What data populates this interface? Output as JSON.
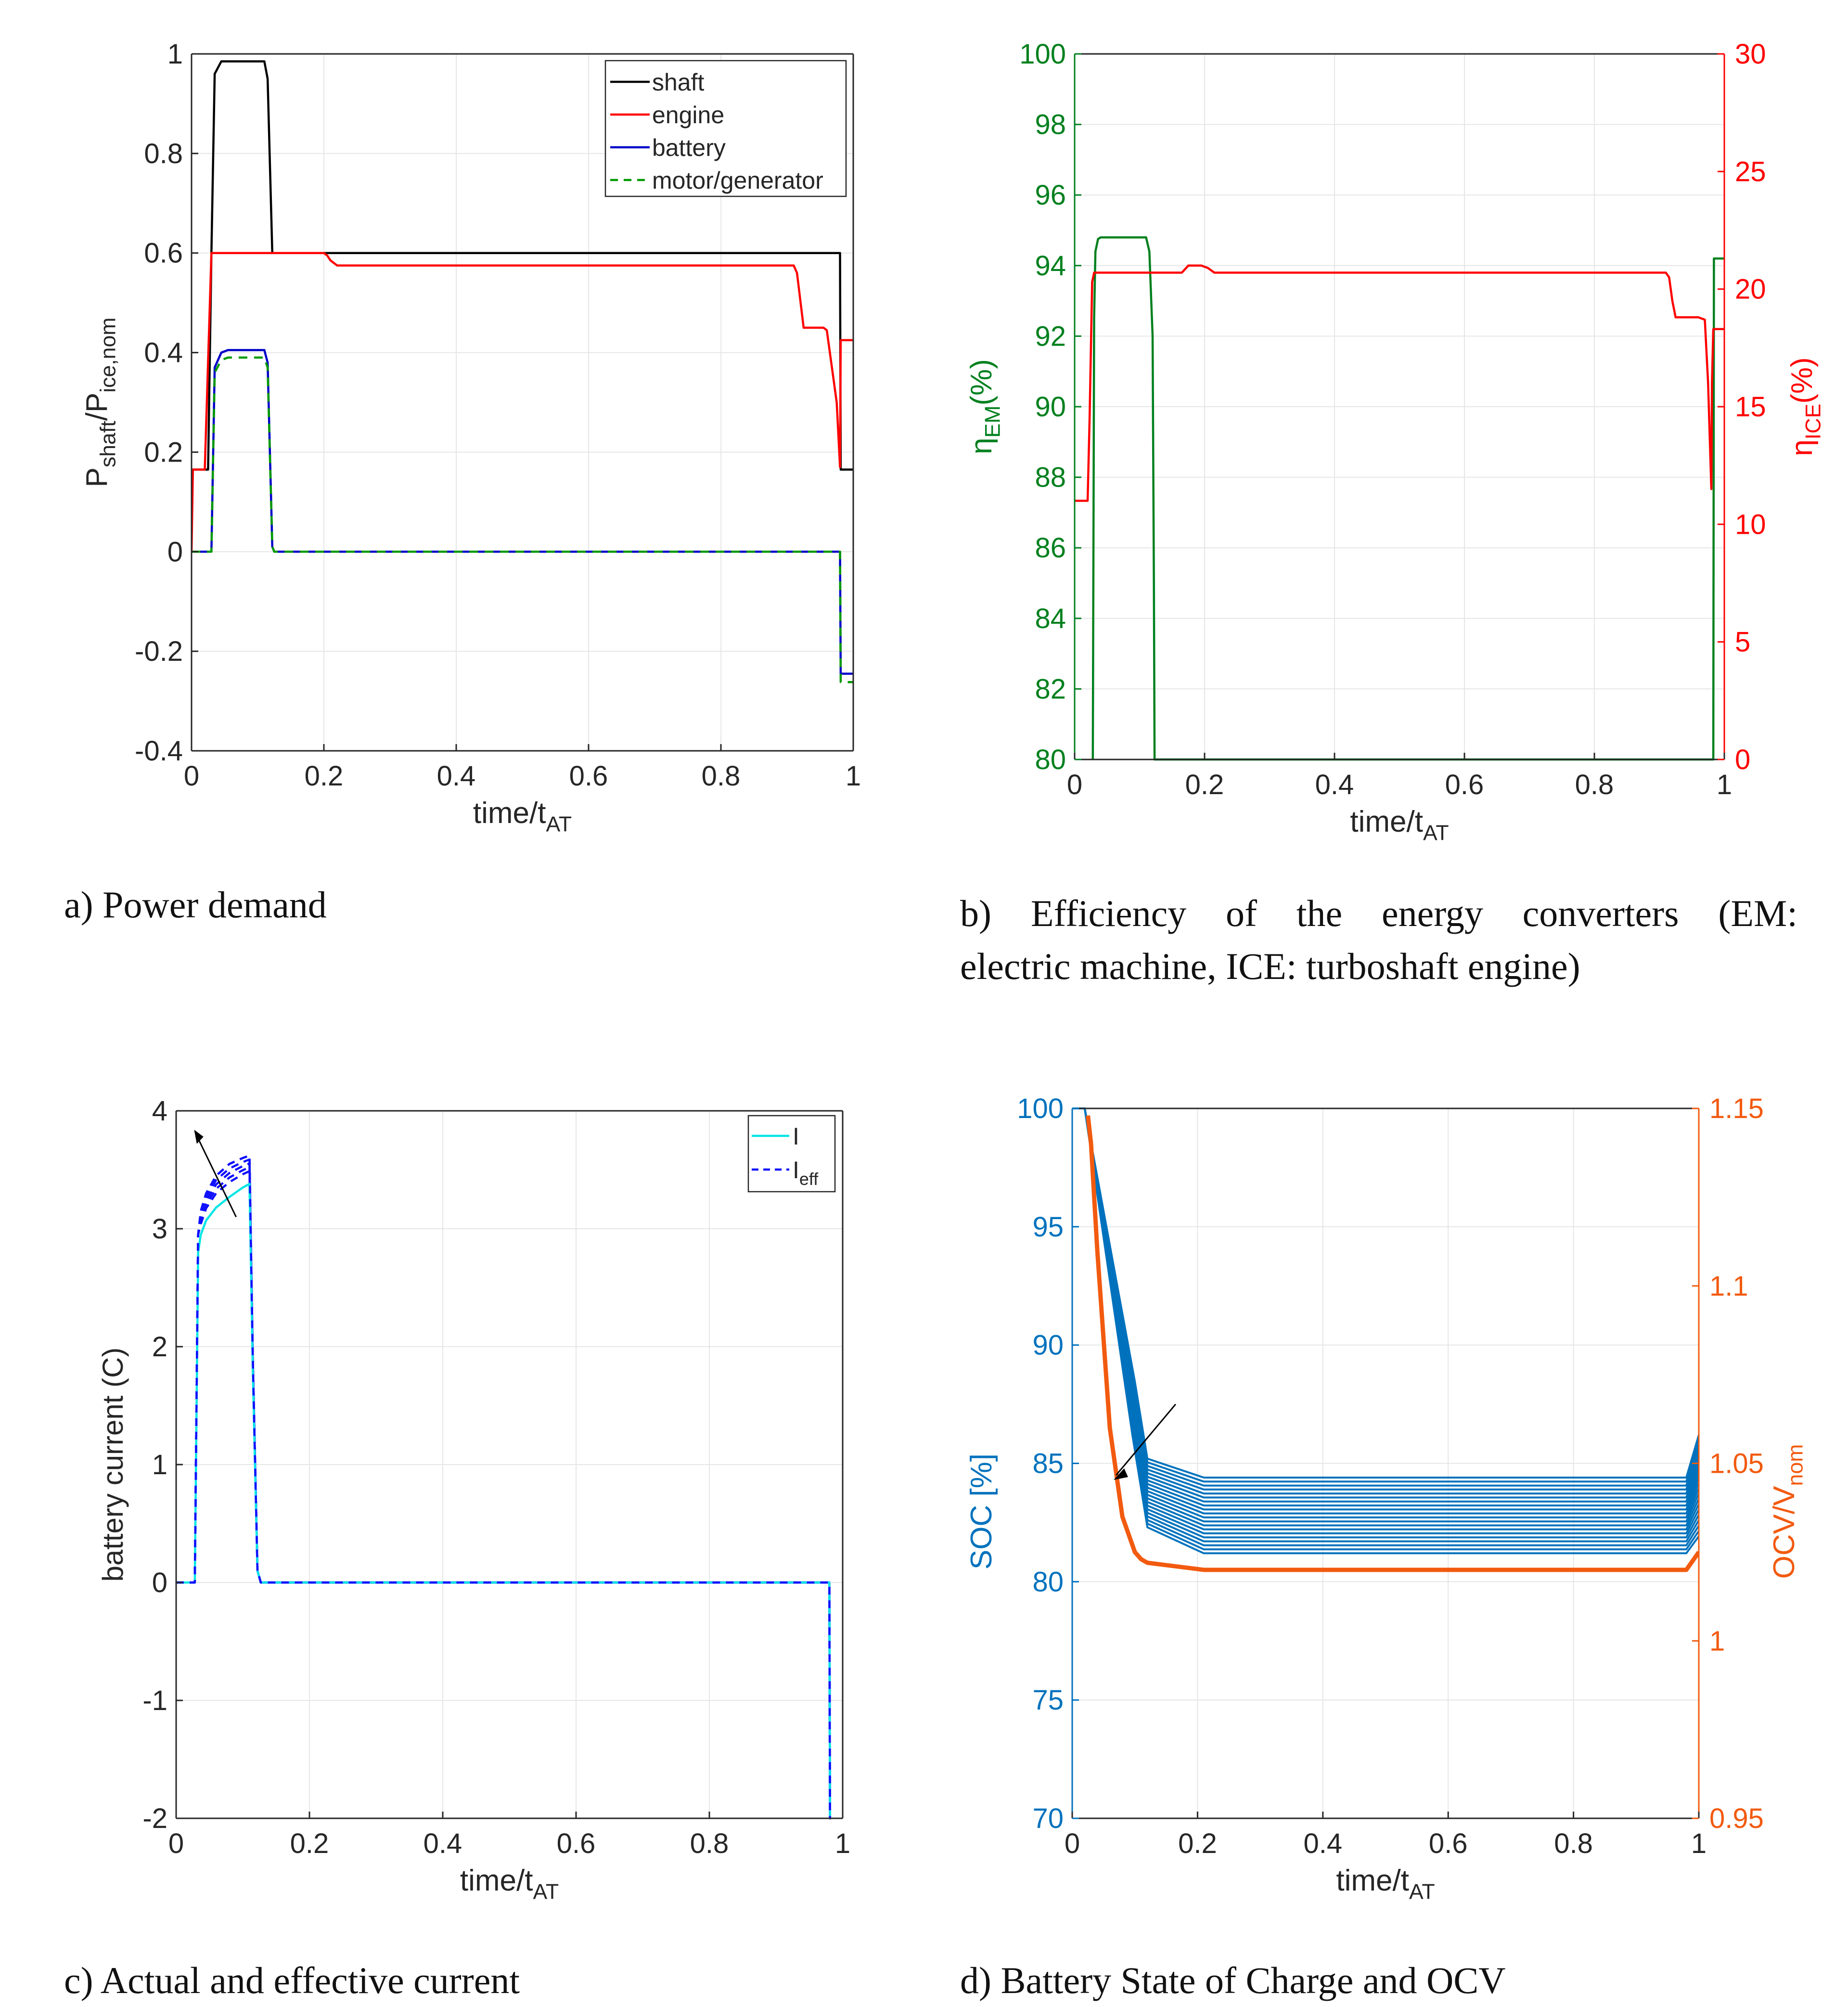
{
  "captions": {
    "a": "a) Power demand",
    "b_line1": "b) Efficiency of the energy converters (EM:",
    "b_line2": "electric machine, ICE: turboshaft engine)",
    "c": "c) Actual and effective current",
    "d": "d) Battery State of Charge and OCV"
  },
  "colors": {
    "shaft": "#000000",
    "engine": "#ff0000",
    "battery": "#0000c8",
    "motor": "#009900",
    "em": "#00801e",
    "ice": "#ff0000",
    "I": "#00e5e5",
    "Ieff": "#1010ff",
    "soc": "#0072bd",
    "ocv": "#f25a0f"
  },
  "chart_data": [
    {
      "id": "a",
      "type": "line",
      "xlabel": "time/t",
      "xlabel_sub": "AT",
      "ylabel_parts": [
        "P",
        "shaft",
        "/P",
        "ice,nom"
      ],
      "xlim": [
        0,
        1
      ],
      "ylim": [
        -0.4,
        1
      ],
      "xticks": [
        0,
        0.2,
        0.4,
        0.6,
        0.8,
        1
      ],
      "xtick_labels": [
        "0",
        "0.2",
        "0.4",
        "0.6",
        "0.8",
        "1"
      ],
      "yticks": [
        -0.4,
        -0.2,
        0,
        0.2,
        0.4,
        0.6,
        0.8,
        1
      ],
      "ytick_labels": [
        "-0.4",
        "-0.2",
        "0",
        "0.2",
        "0.4",
        "0.6",
        "0.8",
        "1"
      ],
      "legend": [
        "shaft",
        "engine",
        "battery",
        "motor/generator"
      ],
      "series": [
        {
          "name": "shaft",
          "x": [
            0,
            0.025,
            0.03,
            0.035,
            0.045,
            0.055,
            0.11,
            0.115,
            0.122,
            0.125,
            0.98,
            0.981,
            1
          ],
          "y": [
            0.165,
            0.165,
            0.6,
            0.96,
            0.985,
            0.985,
            0.985,
            0.95,
            0.6,
            0.6,
            0.6,
            0.165,
            0.165
          ]
        },
        {
          "name": "engine",
          "x": [
            0,
            0.002,
            0.02,
            0.03,
            0.2,
            0.205,
            0.21,
            0.22,
            0.91,
            0.915,
            0.925,
            0.945,
            0.955,
            0.96,
            0.975,
            0.98,
            0.981,
            1
          ],
          "y": [
            0,
            0.165,
            0.165,
            0.6,
            0.6,
            0.595,
            0.585,
            0.575,
            0.575,
            0.56,
            0.45,
            0.45,
            0.45,
            0.445,
            0.3,
            0.17,
            0.425,
            0.425
          ]
        },
        {
          "name": "battery",
          "x": [
            0,
            0.028,
            0.03,
            0.035,
            0.045,
            0.055,
            0.11,
            0.115,
            0.122,
            0.125,
            0.98,
            0.981,
            1
          ],
          "y": [
            0,
            0,
            0,
            0.37,
            0.4,
            0.405,
            0.405,
            0.38,
            0.01,
            0,
            0,
            -0.245,
            -0.245
          ]
        },
        {
          "name": "motor/generator",
          "x": [
            0,
            0.028,
            0.03,
            0.035,
            0.045,
            0.055,
            0.11,
            0.115,
            0.122,
            0.125,
            0.98,
            0.981,
            1
          ],
          "y": [
            0,
            0,
            0,
            0.36,
            0.385,
            0.39,
            0.39,
            0.37,
            0.01,
            0,
            0,
            -0.262,
            -0.262
          ]
        }
      ]
    },
    {
      "id": "b",
      "type": "line",
      "xlabel": "time/t",
      "xlabel_sub": "AT",
      "ylabel_left": [
        "η",
        "EM",
        "(%)"
      ],
      "ylabel_right": [
        "η",
        "ICE",
        "(%)"
      ],
      "xlim": [
        0,
        1
      ],
      "ylim": [
        80,
        100
      ],
      "ylim_right": [
        0,
        30
      ],
      "xticks": [
        0,
        0.2,
        0.4,
        0.6,
        0.8,
        1
      ],
      "xtick_labels": [
        "0",
        "0.2",
        "0.4",
        "0.6",
        "0.8",
        "1"
      ],
      "yticks": [
        80,
        82,
        84,
        86,
        88,
        90,
        92,
        94,
        96,
        98,
        100
      ],
      "ytick_labels": [
        "80",
        "82",
        "84",
        "86",
        "88",
        "90",
        "92",
        "94",
        "96",
        "98",
        "100"
      ],
      "yticks_right": [
        0,
        5,
        10,
        15,
        20,
        25,
        30
      ],
      "ytick_labels_right": [
        "0",
        "5",
        "10",
        "15",
        "20",
        "25",
        "30"
      ],
      "series": [
        {
          "name": "EM efficiency",
          "axis": "left",
          "x": [
            0.028,
            0.03,
            0.032,
            0.036,
            0.04,
            0.05,
            0.11,
            0.115,
            0.12,
            0.122,
            0.123,
            0.98,
            0.983,
            0.984,
            0.987,
            1
          ],
          "y": [
            80,
            92.5,
            94.4,
            94.75,
            94.8,
            94.8,
            94.8,
            94.4,
            92,
            85,
            80,
            80,
            80,
            94.2,
            94.2,
            94.2
          ]
        },
        {
          "name": "ICE efficiency",
          "axis": "right",
          "x": [
            0,
            0.02,
            0.023,
            0.027,
            0.03,
            0.04,
            0.165,
            0.175,
            0.195,
            0.205,
            0.215,
            0.91,
            0.915,
            0.92,
            0.925,
            0.96,
            0.97,
            0.975,
            0.98,
            0.981,
            0.983,
            1
          ],
          "y": [
            11,
            11,
            14.5,
            20.3,
            20.7,
            20.7,
            20.7,
            21,
            21,
            20.9,
            20.7,
            20.7,
            20.5,
            19.5,
            18.8,
            18.8,
            18.7,
            16,
            11.5,
            16,
            18.3,
            18.3
          ]
        }
      ]
    },
    {
      "id": "c",
      "type": "line",
      "xlabel": "time/t",
      "xlabel_sub": "AT",
      "ylabel": "battery current (C)",
      "xlim": [
        0,
        1
      ],
      "ylim": [
        -2,
        4
      ],
      "xticks": [
        0,
        0.2,
        0.4,
        0.6,
        0.8,
        1
      ],
      "xtick_labels": [
        "0",
        "0.2",
        "0.4",
        "0.6",
        "0.8",
        "1"
      ],
      "yticks": [
        -2,
        -1,
        0,
        1,
        2,
        3,
        4
      ],
      "ytick_labels": [
        "-2",
        "-1",
        "0",
        "1",
        "2",
        "3",
        "4"
      ],
      "legend": [
        "I",
        "I_eff"
      ],
      "legend_main": [
        "I",
        "I"
      ],
      "legend_sub": [
        "",
        "eff"
      ],
      "series": [
        {
          "name": "I",
          "x": [
            0,
            0.028,
            0.033,
            0.037,
            0.045,
            0.06,
            0.08,
            0.1,
            0.11,
            0.115,
            0.122,
            0.127,
            0.98,
            0.981,
            0.982
          ],
          "y": [
            0,
            0,
            2.8,
            2.95,
            3.07,
            3.18,
            3.27,
            3.35,
            3.38,
            1.8,
            0.1,
            0,
            0,
            -2,
            -2
          ]
        },
        {
          "name": "I_eff",
          "x": [
            0,
            0.028,
            0.033,
            0.037,
            0.045,
            0.06,
            0.08,
            0.1,
            0.11,
            0.115,
            0.122,
            0.127,
            0.98,
            0.981,
            0.982
          ],
          "y": [
            0,
            0,
            2.95,
            3.15,
            3.3,
            3.45,
            3.55,
            3.6,
            3.62,
            1.9,
            0.1,
            0,
            0,
            -2,
            -2
          ]
        }
      ]
    },
    {
      "id": "d",
      "type": "line",
      "xlabel": "time/t",
      "xlabel_sub": "AT",
      "ylabel_left": "SOC [%]",
      "ylabel_right_parts": [
        "OCV/V",
        "nom"
      ],
      "xlim": [
        0,
        1
      ],
      "ylim": [
        70,
        100
      ],
      "ylim_right": [
        0.95,
        1.15
      ],
      "xticks": [
        0,
        0.2,
        0.4,
        0.6,
        0.8,
        1
      ],
      "xtick_labels": [
        "0",
        "0.2",
        "0.4",
        "0.6",
        "0.8",
        "1"
      ],
      "yticks": [
        70,
        75,
        80,
        85,
        90,
        95,
        100
      ],
      "ytick_labels": [
        "70",
        "75",
        "80",
        "85",
        "90",
        "95",
        "100"
      ],
      "yticks_right": [
        0.95,
        1,
        1.05,
        1.1,
        1.15
      ],
      "ytick_labels_right": [
        "0.95",
        "1",
        "1.05",
        "1.1",
        "1.15"
      ],
      "soc_family": {
        "count": 20,
        "x": [
          0,
          0.02,
          0.1,
          0.12,
          0.21,
          0.98,
          1
        ],
        "start": 100,
        "plateau_top": [
          85.2,
          84.4
        ],
        "plateau_bottom": [
          82.3,
          81.2
        ],
        "end_top": 86.2
      },
      "series": [
        {
          "name": "OCV/V_nom",
          "axis": "right",
          "x": [
            0.025,
            0.03,
            0.04,
            0.06,
            0.08,
            0.1,
            0.11,
            0.12,
            0.21,
            0.98,
            1
          ],
          "y": [
            1.148,
            1.14,
            1.11,
            1.06,
            1.035,
            1.025,
            1.023,
            1.022,
            1.02,
            1.02,
            1.025
          ]
        }
      ]
    }
  ]
}
